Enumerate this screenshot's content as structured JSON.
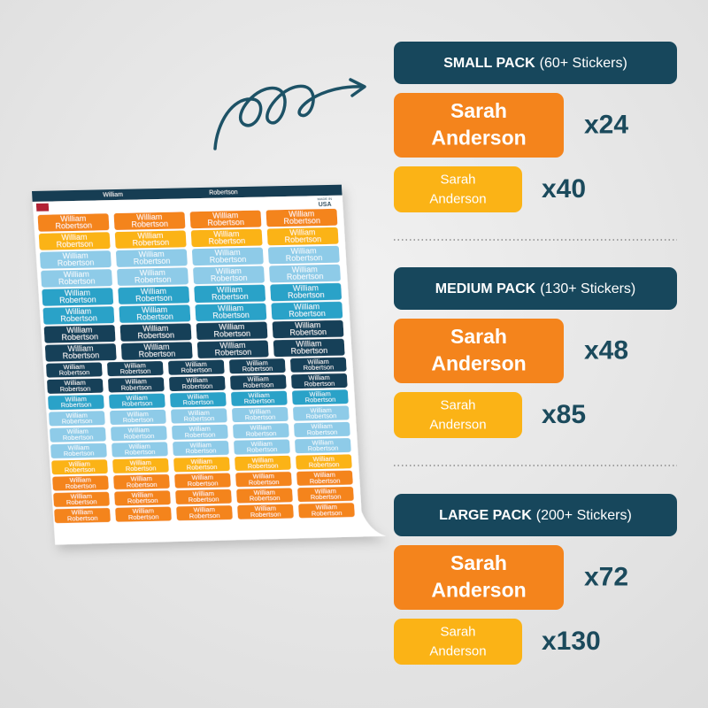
{
  "sheet": {
    "header_first": "William",
    "header_last": "Robertson",
    "made_in": "MADE IN",
    "country": "USA",
    "sticker_first": "William",
    "sticker_last": "Robertson"
  },
  "packs": [
    {
      "name": "SMALL PACK",
      "count": "(60+ Stickers)",
      "stickers": [
        {
          "first": "Sarah",
          "last": "Anderson",
          "quantity": "x24"
        },
        {
          "first": "Sarah",
          "last": "Anderson",
          "quantity": "x40"
        }
      ]
    },
    {
      "name": "MEDIUM PACK",
      "count": "(130+ Stickers)",
      "stickers": [
        {
          "first": "Sarah",
          "last": "Anderson",
          "quantity": "x48"
        },
        {
          "first": "Sarah",
          "last": "Anderson",
          "quantity": "x85"
        }
      ]
    },
    {
      "name": "LARGE PACK",
      "count": "(200+ Stickers)",
      "stickers": [
        {
          "first": "Sarah",
          "last": "Anderson",
          "quantity": "x72"
        },
        {
          "first": "Sarah",
          "last": "Anderson",
          "quantity": "x130"
        }
      ]
    }
  ]
}
